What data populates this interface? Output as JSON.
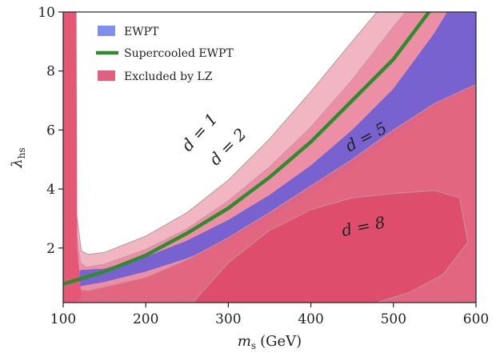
{
  "chart_data": {
    "type": "area",
    "xlabel": "m",
    "xlabel_sub": "s",
    "xlabel_unit": "(GeV)",
    "ylabel": "λ",
    "ylabel_sub": "hs",
    "xlim": [
      100,
      600
    ],
    "ylim": [
      0.15,
      10
    ],
    "x_ticks": [
      100,
      200,
      300,
      400,
      500,
      600
    ],
    "y_ticks": [
      2,
      4,
      6,
      8,
      10
    ],
    "grid": false,
    "legend_position": "top-left",
    "legend": [
      {
        "label": "EWPT",
        "color": "#7f8ff0",
        "kind": "patch"
      },
      {
        "label": "Supercooled EWPT",
        "color": "#2e8b2e",
        "kind": "line"
      },
      {
        "label": "Excluded by LZ",
        "color": "#e0607e",
        "kind": "patch"
      }
    ],
    "series": [
      {
        "name": "EWPT",
        "upper": [
          [
            120,
            1.25
          ],
          [
            150,
            1.3
          ],
          [
            200,
            1.7
          ],
          [
            250,
            2.25
          ],
          [
            300,
            2.95
          ],
          [
            350,
            3.8
          ],
          [
            400,
            4.8
          ],
          [
            450,
            6.0
          ],
          [
            500,
            7.4
          ],
          [
            550,
            9.3
          ],
          [
            565,
            10
          ],
          [
            600,
            10
          ]
        ],
        "lower": [
          [
            120,
            0.7
          ],
          [
            150,
            0.85
          ],
          [
            200,
            1.2
          ],
          [
            250,
            1.65
          ],
          [
            300,
            2.25
          ],
          [
            350,
            3.0
          ],
          [
            400,
            3.85
          ],
          [
            450,
            4.75
          ],
          [
            500,
            5.8
          ],
          [
            550,
            6.8
          ],
          [
            600,
            7.5
          ]
        ]
      },
      {
        "name": "Supercooled EWPT",
        "points": [
          [
            100,
            0.78
          ],
          [
            150,
            1.2
          ],
          [
            200,
            1.75
          ],
          [
            250,
            2.5
          ],
          [
            300,
            3.35
          ],
          [
            350,
            4.4
          ],
          [
            400,
            5.6
          ],
          [
            450,
            7.0
          ],
          [
            500,
            8.4
          ],
          [
            543,
            10
          ]
        ]
      }
    ],
    "exclusion_contours": [
      {
        "label_d": "1",
        "points": [
          [
            130,
            1.78
          ],
          [
            150,
            1.85
          ],
          [
            200,
            2.4
          ],
          [
            250,
            3.2
          ],
          [
            300,
            4.3
          ],
          [
            350,
            5.7
          ],
          [
            400,
            7.3
          ],
          [
            450,
            9.0
          ],
          [
            480,
            10
          ]
        ]
      },
      {
        "label_d": "2",
        "points": [
          [
            128,
            1.35
          ],
          [
            150,
            1.45
          ],
          [
            200,
            1.95
          ],
          [
            250,
            2.65
          ],
          [
            300,
            3.6
          ],
          [
            350,
            4.75
          ],
          [
            400,
            6.1
          ],
          [
            450,
            7.7
          ],
          [
            500,
            9.5
          ],
          [
            515,
            10
          ]
        ]
      },
      {
        "label_d": "5",
        "points": [
          [
            130,
            0.55
          ],
          [
            200,
            1.0
          ],
          [
            250,
            1.6
          ],
          [
            300,
            2.35
          ],
          [
            350,
            3.2
          ],
          [
            400,
            4.1
          ],
          [
            450,
            5.0
          ],
          [
            500,
            6.0
          ],
          [
            550,
            6.9
          ],
          [
            600,
            7.55
          ]
        ]
      },
      {
        "label_d": "8",
        "points": [
          [
            260,
            0.25
          ],
          [
            300,
            1.5
          ],
          [
            350,
            2.6
          ],
          [
            400,
            3.3
          ],
          [
            450,
            3.7
          ],
          [
            500,
            3.85
          ],
          [
            550,
            3.95
          ],
          [
            580,
            3.7
          ],
          [
            590,
            2.2
          ],
          [
            560,
            1.1
          ],
          [
            520,
            0.5
          ],
          [
            480,
            0.15
          ]
        ]
      }
    ],
    "annotations": [
      {
        "d": "1",
        "x": 270,
        "y": 5.8
      },
      {
        "d": "2",
        "x": 304,
        "y": 5.3
      },
      {
        "d": "5",
        "x": 470,
        "y": 5.6
      },
      {
        "d": "8",
        "x": 465,
        "y": 2.55
      }
    ]
  }
}
